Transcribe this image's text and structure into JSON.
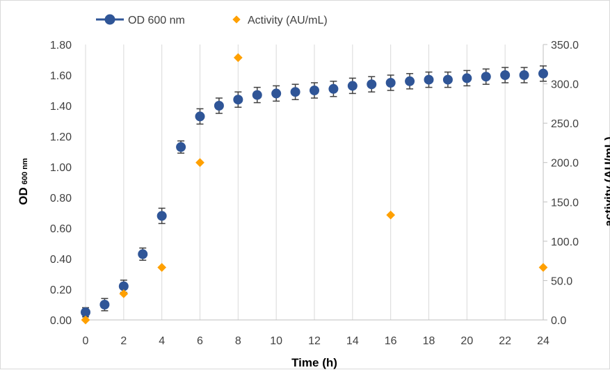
{
  "chart_data": {
    "type": "scatter",
    "xlabel": "Time (h)",
    "ylabel_main": "OD",
    "ylabel_sub": "600 nm",
    "y2label": "activity (AU/mL)",
    "xlim": [
      0,
      24
    ],
    "ylim": [
      0,
      1.8
    ],
    "y2lim": [
      0,
      350
    ],
    "x_ticks": [
      "0",
      "2",
      "4",
      "6",
      "8",
      "10",
      "12",
      "14",
      "16",
      "18",
      "20",
      "22",
      "24"
    ],
    "y_ticks": [
      "0.00",
      "0.20",
      "0.40",
      "0.60",
      "0.80",
      "1.00",
      "1.20",
      "1.40",
      "1.60",
      "1.80"
    ],
    "y2_ticks": [
      "0.0",
      "50.0",
      "100.0",
      "150.0",
      "200.0",
      "250.0",
      "300.0",
      "350.0"
    ],
    "grid": "vertical",
    "legend_position": "top",
    "series": [
      {
        "name": "OD 600 nm",
        "axis": "left",
        "marker": "circle",
        "color": "#2f5597",
        "x": [
          0,
          1,
          2,
          3,
          4,
          5,
          6,
          7,
          8,
          9,
          10,
          11,
          12,
          13,
          14,
          15,
          16,
          17,
          18,
          19,
          20,
          21,
          22,
          23,
          24
        ],
        "y": [
          0.05,
          0.1,
          0.22,
          0.43,
          0.68,
          1.13,
          1.33,
          1.4,
          1.44,
          1.47,
          1.48,
          1.49,
          1.5,
          1.51,
          1.53,
          1.54,
          1.55,
          1.56,
          1.57,
          1.57,
          1.58,
          1.59,
          1.6,
          1.6,
          1.61
        ],
        "error": [
          0.03,
          0.04,
          0.04,
          0.04,
          0.05,
          0.04,
          0.05,
          0.05,
          0.05,
          0.05,
          0.05,
          0.05,
          0.05,
          0.05,
          0.05,
          0.05,
          0.05,
          0.05,
          0.05,
          0.05,
          0.05,
          0.05,
          0.05,
          0.05,
          0.05
        ]
      },
      {
        "name": "Activity (AU/mL)",
        "axis": "right",
        "marker": "diamond",
        "color": "#ffa000",
        "x": [
          0,
          2,
          4,
          6,
          8,
          16,
          24
        ],
        "y": [
          0,
          33.3,
          66.7,
          200,
          333.3,
          133.3,
          66.7
        ]
      }
    ]
  }
}
